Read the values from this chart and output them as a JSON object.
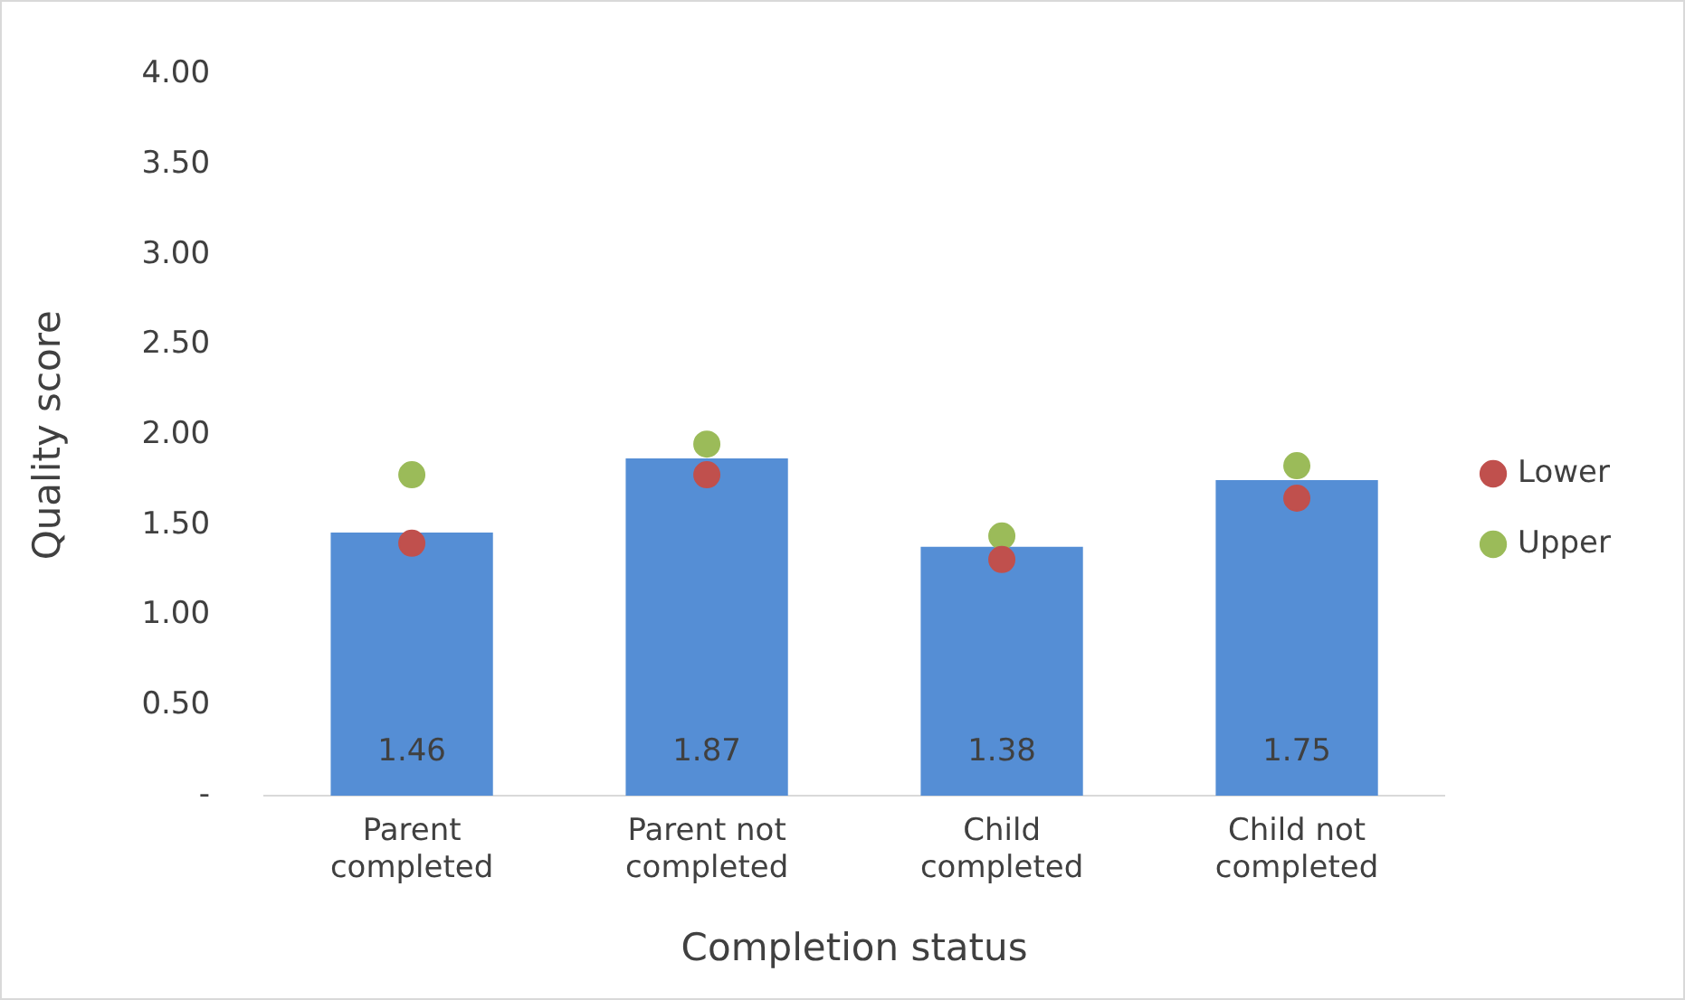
{
  "chart_data": {
    "type": "bar",
    "xlabel": "Completion status",
    "ylabel": "Quality score",
    "categories": [
      "Parent completed",
      "Parent not completed",
      "Child completed",
      "Child not completed"
    ],
    "series": [
      {
        "color": "#558ed5",
        "values": [
          1.46,
          1.87,
          1.38,
          1.75
        ],
        "value_labels": [
          "1.46",
          "1.87",
          "1.38",
          "1.75"
        ]
      },
      {
        "type": "scatter",
        "name": "Lower",
        "color": "#c0504d",
        "values": [
          1.4,
          1.78,
          1.31,
          1.65
        ]
      },
      {
        "type": "scatter",
        "name": "Upper",
        "color": "#9bbb59",
        "values": [
          1.78,
          1.95,
          1.44,
          1.83
        ]
      }
    ],
    "ylim": [
      0,
      4
    ],
    "yticks": [
      {
        "value": 0,
        "label": "-"
      },
      {
        "value": 0.5,
        "label": "0.50"
      },
      {
        "value": 1,
        "label": "1.00"
      },
      {
        "value": 1.5,
        "label": "1.50"
      },
      {
        "value": 2,
        "label": "2.00"
      },
      {
        "value": 2.5,
        "label": "2.50"
      },
      {
        "value": 3,
        "label": "3.00"
      },
      {
        "value": 3.5,
        "label": "3.50"
      },
      {
        "value": 4,
        "label": "4.00"
      }
    ],
    "grid": false,
    "legend": "right",
    "marker": "circle"
  }
}
